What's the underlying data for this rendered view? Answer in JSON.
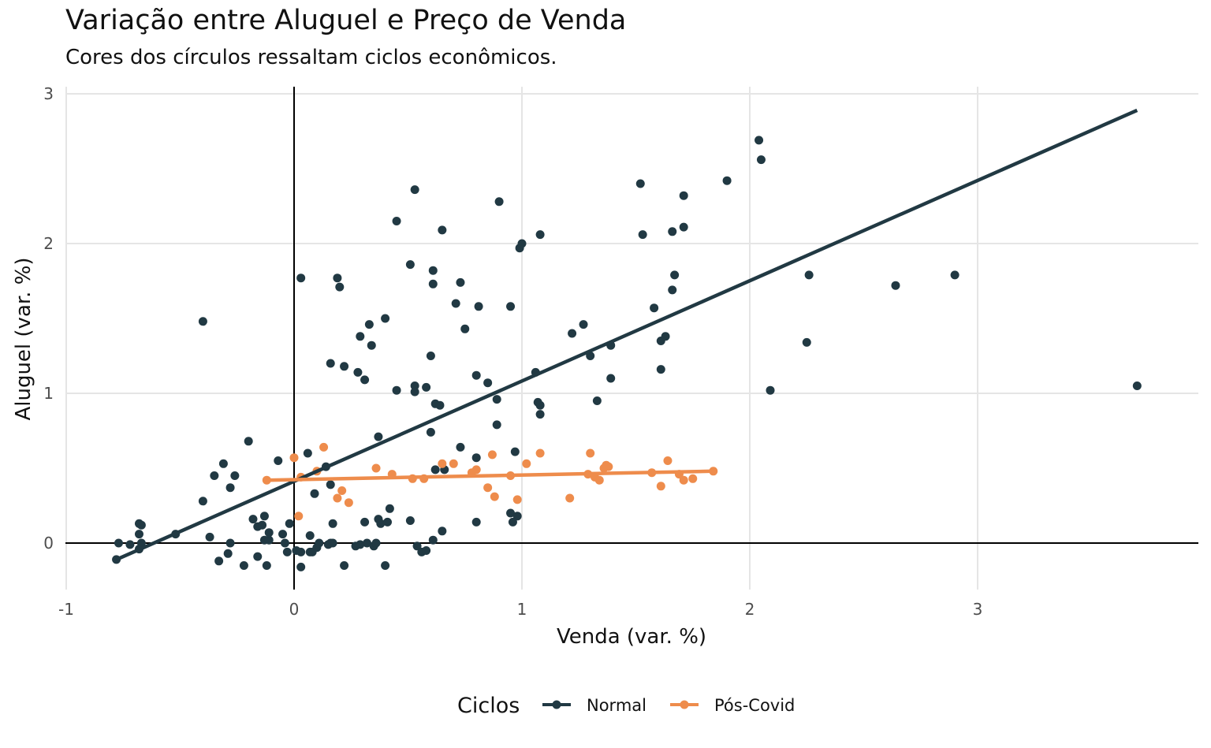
{
  "chart_data": {
    "type": "scatter",
    "title": "Variação entre Aluguel e Preço de Venda",
    "subtitle": "Cores dos círculos ressaltam ciclos econômicos.",
    "xlabel": "Venda (var. %)",
    "ylabel": "Aluguel (var. %)",
    "xlim": [
      -1,
      3.9
    ],
    "ylim": [
      -0.3,
      3
    ],
    "x_ticks": [
      "-1",
      "0",
      "1",
      "2",
      "3"
    ],
    "y_ticks": [
      "0",
      "1",
      "2",
      "3"
    ],
    "grid": true,
    "reference_lines": {
      "x": 0,
      "y": 0
    },
    "legend": {
      "title": "Ciclos",
      "position": "bottom"
    },
    "series": [
      {
        "name": "Normal",
        "color": "#213943",
        "trend": {
          "x": [
            -0.78,
            3.7
          ],
          "y": [
            -0.11,
            2.89
          ]
        },
        "points": [
          [
            -0.4,
            1.48
          ],
          [
            0.53,
            2.36
          ],
          [
            0.45,
            2.15
          ],
          [
            0.9,
            2.28
          ],
          [
            0.65,
            2.09
          ],
          [
            0.51,
            1.86
          ],
          [
            0.61,
            1.82
          ],
          [
            0.61,
            1.73
          ],
          [
            0.73,
            1.74
          ],
          [
            0.71,
            1.6
          ],
          [
            0.81,
            1.58
          ],
          [
            0.95,
            1.58
          ],
          [
            0.03,
            1.77
          ],
          [
            0.19,
            1.77
          ],
          [
            0.2,
            1.71
          ],
          [
            0.4,
            1.5
          ],
          [
            0.33,
            1.46
          ],
          [
            0.29,
            1.38
          ],
          [
            0.34,
            1.32
          ],
          [
            0.75,
            1.43
          ],
          [
            0.99,
            1.97
          ],
          [
            1.0,
            2.0
          ],
          [
            1.08,
            2.06
          ],
          [
            1.52,
            2.4
          ],
          [
            1.9,
            2.42
          ],
          [
            2.04,
            2.69
          ],
          [
            2.05,
            2.56
          ],
          [
            1.71,
            2.32
          ],
          [
            1.53,
            2.06
          ],
          [
            1.66,
            2.08
          ],
          [
            1.71,
            2.11
          ],
          [
            1.67,
            1.79
          ],
          [
            1.66,
            1.69
          ],
          [
            1.58,
            1.57
          ],
          [
            2.26,
            1.79
          ],
          [
            2.64,
            1.72
          ],
          [
            2.9,
            1.79
          ],
          [
            3.7,
            1.05
          ],
          [
            2.25,
            1.34
          ],
          [
            2.09,
            1.02
          ],
          [
            0.16,
            1.2
          ],
          [
            0.22,
            1.18
          ],
          [
            0.28,
            1.14
          ],
          [
            0.31,
            1.09
          ],
          [
            0.45,
            1.02
          ],
          [
            0.53,
            1.05
          ],
          [
            0.53,
            1.01
          ],
          [
            0.58,
            1.04
          ],
          [
            0.6,
            1.25
          ],
          [
            0.62,
            0.93
          ],
          [
            0.64,
            0.92
          ],
          [
            0.6,
            0.74
          ],
          [
            0.8,
            1.12
          ],
          [
            0.85,
            1.07
          ],
          [
            0.89,
            0.96
          ],
          [
            0.89,
            0.79
          ],
          [
            1.06,
            1.14
          ],
          [
            1.07,
            0.94
          ],
          [
            1.08,
            0.92
          ],
          [
            1.08,
            0.86
          ],
          [
            1.22,
            1.4
          ],
          [
            1.27,
            1.46
          ],
          [
            1.3,
            1.25
          ],
          [
            1.39,
            1.32
          ],
          [
            1.39,
            1.1
          ],
          [
            1.33,
            0.95
          ],
          [
            1.61,
            1.35
          ],
          [
            1.63,
            1.38
          ],
          [
            1.61,
            1.16
          ],
          [
            0.37,
            0.71
          ],
          [
            0.73,
            0.64
          ],
          [
            0.8,
            0.57
          ],
          [
            0.62,
            0.49
          ],
          [
            0.66,
            0.49
          ],
          [
            0.97,
            0.61
          ],
          [
            -0.2,
            0.68
          ],
          [
            -0.31,
            0.53
          ],
          [
            -0.35,
            0.45
          ],
          [
            -0.26,
            0.45
          ],
          [
            -0.28,
            0.37
          ],
          [
            -0.4,
            0.28
          ],
          [
            -0.07,
            0.55
          ],
          [
            0.06,
            0.6
          ],
          [
            0.14,
            0.51
          ],
          [
            0.16,
            0.39
          ],
          [
            0.09,
            0.33
          ],
          [
            -0.78,
            -0.11
          ],
          [
            -0.77,
            0.0
          ],
          [
            -0.72,
            -0.01
          ],
          [
            -0.68,
            -0.04
          ],
          [
            -0.67,
            0.0
          ],
          [
            -0.68,
            0.06
          ],
          [
            -0.67,
            0.12
          ],
          [
            -0.68,
            0.13
          ],
          [
            -0.52,
            0.06
          ],
          [
            -0.37,
            0.04
          ],
          [
            -0.33,
            -0.12
          ],
          [
            -0.28,
            0.0
          ],
          [
            -0.29,
            -0.07
          ],
          [
            -0.22,
            -0.15
          ],
          [
            -0.18,
            0.16
          ],
          [
            -0.16,
            0.11
          ],
          [
            -0.14,
            0.12
          ],
          [
            -0.16,
            -0.09
          ],
          [
            -0.13,
            0.02
          ],
          [
            -0.13,
            0.18
          ],
          [
            -0.11,
            0.02
          ],
          [
            -0.11,
            0.07
          ],
          [
            -0.12,
            -0.15
          ],
          [
            -0.05,
            0.06
          ],
          [
            -0.04,
            0.0
          ],
          [
            -0.02,
            0.13
          ],
          [
            -0.03,
            -0.06
          ],
          [
            0.01,
            -0.05
          ],
          [
            0.03,
            -0.06
          ],
          [
            0.03,
            -0.16
          ],
          [
            0.07,
            0.05
          ],
          [
            0.07,
            -0.06
          ],
          [
            0.08,
            -0.06
          ],
          [
            0.1,
            -0.03
          ],
          [
            0.11,
            0.0
          ],
          [
            0.15,
            -0.01
          ],
          [
            0.16,
            0.0
          ],
          [
            0.17,
            0.13
          ],
          [
            0.17,
            0.0
          ],
          [
            0.22,
            -0.15
          ],
          [
            0.27,
            -0.02
          ],
          [
            0.29,
            -0.01
          ],
          [
            0.31,
            0.14
          ],
          [
            0.32,
            0.0
          ],
          [
            0.35,
            -0.02
          ],
          [
            0.36,
            0.0
          ],
          [
            0.37,
            0.16
          ],
          [
            0.38,
            0.13
          ],
          [
            0.4,
            -0.15
          ],
          [
            0.41,
            0.14
          ],
          [
            0.42,
            0.23
          ],
          [
            0.51,
            0.15
          ],
          [
            0.54,
            -0.02
          ],
          [
            0.56,
            -0.06
          ],
          [
            0.58,
            -0.05
          ],
          [
            0.61,
            0.02
          ],
          [
            0.65,
            0.08
          ],
          [
            0.8,
            0.14
          ],
          [
            0.95,
            0.2
          ],
          [
            0.98,
            0.18
          ],
          [
            0.96,
            0.14
          ]
        ]
      },
      {
        "name": "Pós-Covid",
        "color": "#ee8c4c",
        "trend": {
          "x": [
            -0.12,
            1.84
          ],
          "y": [
            0.42,
            0.48
          ]
        },
        "points": [
          [
            -0.12,
            0.42
          ],
          [
            0.0,
            0.57
          ],
          [
            0.02,
            0.18
          ],
          [
            0.03,
            0.44
          ],
          [
            0.1,
            0.48
          ],
          [
            0.13,
            0.64
          ],
          [
            0.19,
            0.3
          ],
          [
            0.21,
            0.35
          ],
          [
            0.24,
            0.27
          ],
          [
            0.36,
            0.5
          ],
          [
            0.43,
            0.46
          ],
          [
            0.52,
            0.43
          ],
          [
            0.57,
            0.43
          ],
          [
            0.65,
            0.53
          ],
          [
            0.7,
            0.53
          ],
          [
            0.78,
            0.47
          ],
          [
            0.8,
            0.49
          ],
          [
            0.85,
            0.37
          ],
          [
            0.87,
            0.59
          ],
          [
            0.88,
            0.31
          ],
          [
            0.95,
            0.45
          ],
          [
            0.98,
            0.29
          ],
          [
            1.02,
            0.53
          ],
          [
            1.08,
            0.6
          ],
          [
            1.21,
            0.3
          ],
          [
            1.29,
            0.46
          ],
          [
            1.3,
            0.6
          ],
          [
            1.32,
            0.44
          ],
          [
            1.34,
            0.42
          ],
          [
            1.36,
            0.5
          ],
          [
            1.37,
            0.52
          ],
          [
            1.38,
            0.51
          ],
          [
            1.57,
            0.47
          ],
          [
            1.61,
            0.38
          ],
          [
            1.64,
            0.55
          ],
          [
            1.69,
            0.46
          ],
          [
            1.71,
            0.42
          ],
          [
            1.75,
            0.43
          ],
          [
            1.84,
            0.48
          ]
        ]
      }
    ]
  }
}
